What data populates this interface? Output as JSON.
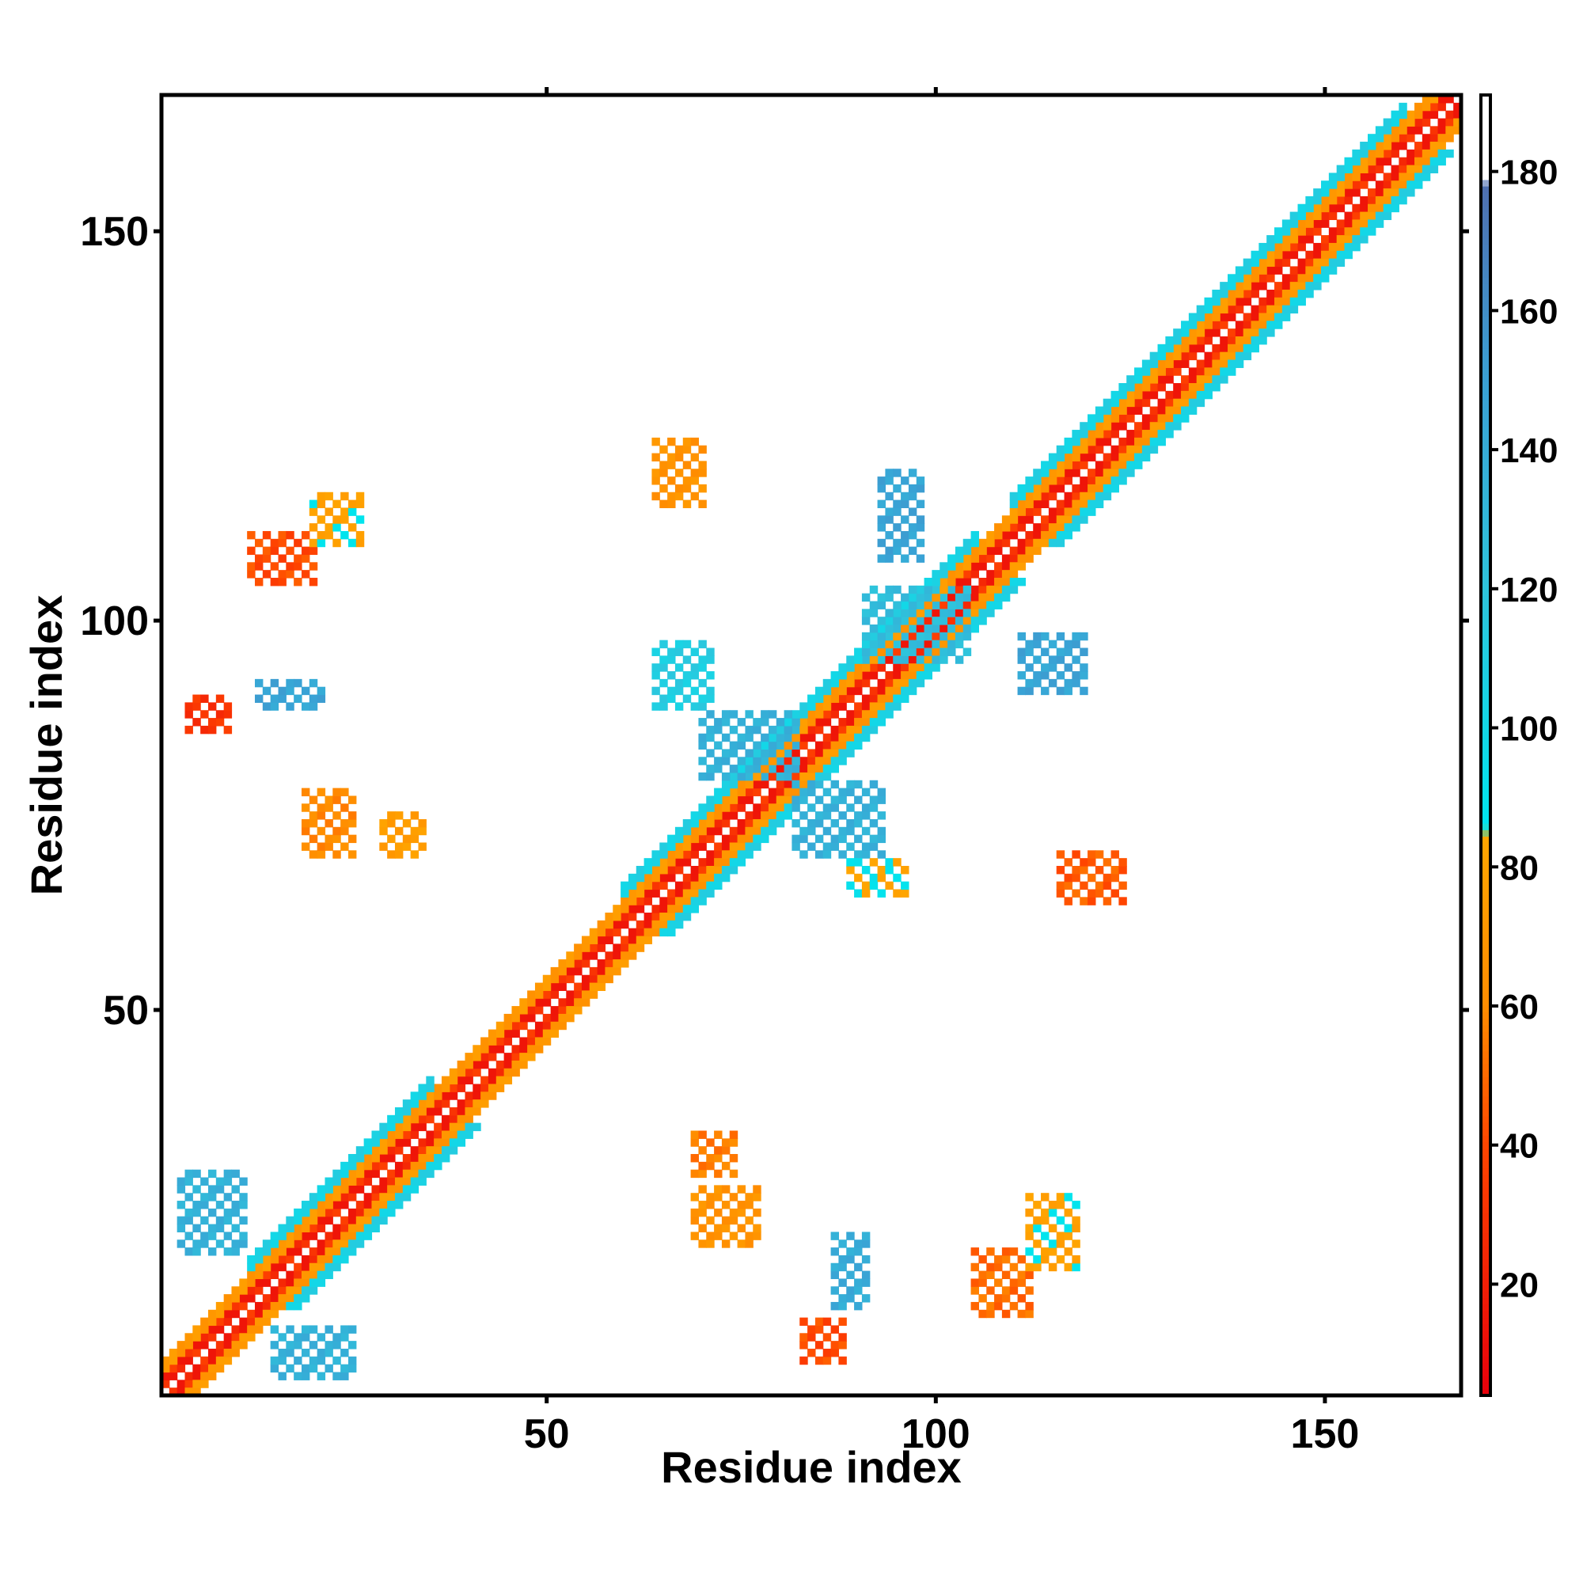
{
  "chart_data": {
    "type": "heatmap",
    "title": "",
    "xlabel": "Residue index",
    "ylabel": "Residue index",
    "xlim": [
      1,
      167
    ],
    "ylim": [
      1,
      167
    ],
    "x_ticks": [
      50,
      100,
      150
    ],
    "y_ticks": [
      50,
      100,
      150
    ],
    "colorbar": {
      "range": [
        4,
        191
      ],
      "ticks": [
        20,
        40,
        60,
        80,
        100,
        120,
        140,
        160,
        180
      ],
      "stops": [
        {
          "value": 4,
          "color": "#e8000b"
        },
        {
          "value": 40,
          "color": "#ff4500"
        },
        {
          "value": 60,
          "color": "#ff8c00"
        },
        {
          "value": 84,
          "color": "#ffa500"
        },
        {
          "value": 86,
          "color": "#00e5ee"
        },
        {
          "value": 120,
          "color": "#2ec4dc"
        },
        {
          "value": 150,
          "color": "#3aa0d4"
        },
        {
          "value": 178,
          "color": "#4f6fb0"
        },
        {
          "value": 179,
          "color": "#ffffff"
        },
        {
          "value": 191,
          "color": "#ffffff"
        }
      ]
    },
    "diagonal_bands": [
      {
        "from": 1,
        "to": 167,
        "offsets": [
          1,
          2
        ],
        "value": 25
      },
      {
        "from": 1,
        "to": 167,
        "offsets": [
          3,
          4
        ],
        "value": 65
      },
      {
        "from": 12,
        "to": 35,
        "offsets": [
          5,
          6
        ],
        "value": 100
      },
      {
        "from": 60,
        "to": 105,
        "offsets": [
          5,
          6
        ],
        "value": 100
      },
      {
        "from": 110,
        "to": 160,
        "offsets": [
          5,
          6
        ],
        "value": 100
      }
    ],
    "contact_blocks": [
      {
        "x": [
          4,
          9
        ],
        "y": [
          86,
          90
        ],
        "value": 25
      },
      {
        "x": [
          12,
          20
        ],
        "y": [
          105,
          111
        ],
        "value": 35
      },
      {
        "x": [
          20,
          26
        ],
        "y": [
          110,
          116
        ],
        "value": 75
      },
      {
        "x": [
          13,
          21
        ],
        "y": [
          89,
          92
        ],
        "value": 140
      },
      {
        "x": [
          19,
          25
        ],
        "y": [
          70,
          78
        ],
        "value": 55
      },
      {
        "x": [
          29,
          34
        ],
        "y": [
          70,
          75
        ],
        "value": 70
      },
      {
        "x": [
          64,
          70
        ],
        "y": [
          115,
          123
        ],
        "value": 60
      },
      {
        "x": [
          64,
          71
        ],
        "y": [
          89,
          97
        ],
        "value": 105
      },
      {
        "x": [
          70,
          82
        ],
        "y": [
          80,
          88
        ],
        "value": 130
      },
      {
        "x": [
          82,
          93
        ],
        "y": [
          70,
          79
        ],
        "value": 130
      },
      {
        "x": [
          89,
          96
        ],
        "y": [
          65,
          69
        ],
        "value": 80
      },
      {
        "x": [
          93,
          98
        ],
        "y": [
          108,
          119
        ],
        "value": 140
      },
      {
        "x": [
          91,
          104
        ],
        "y": [
          95,
          104
        ],
        "value": 120
      },
      {
        "x": [
          111,
          119
        ],
        "y": [
          91,
          98
        ],
        "value": 140
      },
      {
        "x": [
          116,
          124
        ],
        "y": [
          64,
          70
        ],
        "value": 40
      },
      {
        "x": [
          3,
          11
        ],
        "y": [
          19,
          29
        ],
        "value": 130
      },
      {
        "x": [
          15,
          25
        ],
        "y": [
          3,
          9
        ],
        "value": 130
      },
      {
        "x": [
          69,
          74
        ],
        "y": [
          29,
          34
        ],
        "value": 50
      },
      {
        "x": [
          69,
          77
        ],
        "y": [
          20,
          27
        ],
        "value": 60
      },
      {
        "x": [
          83,
          88
        ],
        "y": [
          5,
          10
        ],
        "value": 35
      },
      {
        "x": [
          87,
          91
        ],
        "y": [
          12,
          21
        ],
        "value": 135
      },
      {
        "x": [
          105,
          112
        ],
        "y": [
          11,
          19
        ],
        "value": 45
      },
      {
        "x": [
          112,
          118
        ],
        "y": [
          17,
          26
        ],
        "value": 75
      }
    ]
  }
}
